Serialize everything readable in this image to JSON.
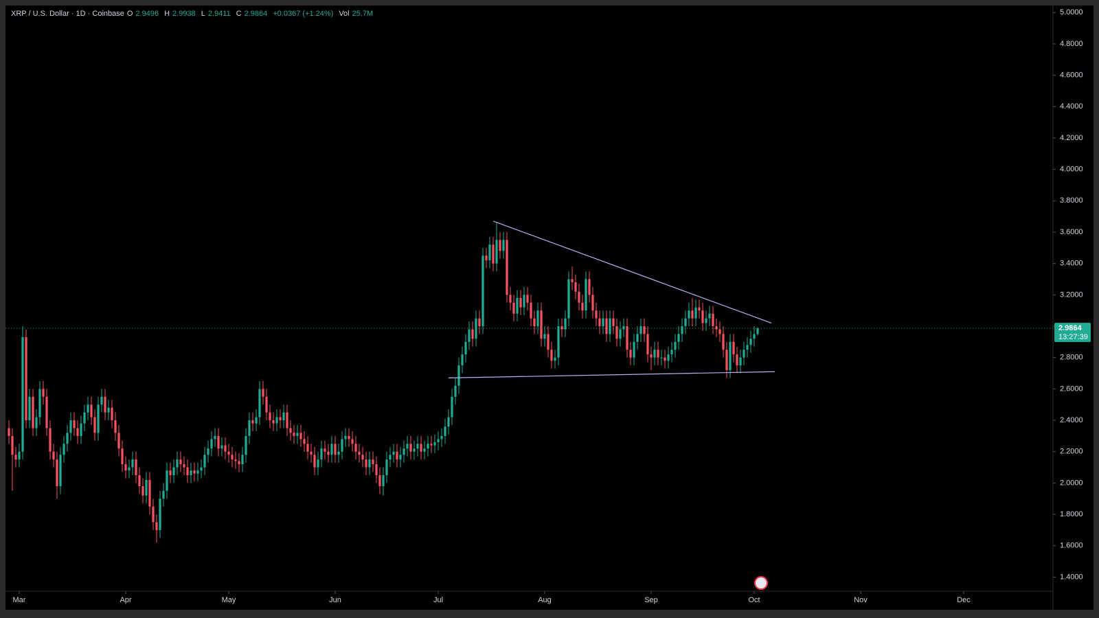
{
  "chart_data": {
    "type": "candlestick",
    "symbol": "XRP / U.S. Dollar · 1D · Coinbase",
    "ohlc_labels": [
      "O",
      "H",
      "L",
      "C"
    ],
    "change": "+0.0367 (+1.24%)",
    "volume_label": "Vol",
    "volume": "25.7M",
    "countdown": "13:27:39",
    "up_color": "#22ab94",
    "down_color": "#f7525f",
    "grid": false,
    "xlim": [
      56,
      361
    ],
    "xticks": [
      {
        "value": 60,
        "label": "Mar"
      },
      {
        "value": 91,
        "label": "Apr"
      },
      {
        "value": 121,
        "label": "May"
      },
      {
        "value": 152,
        "label": "Jun"
      },
      {
        "value": 182,
        "label": "Jul"
      },
      {
        "value": 213,
        "label": "Aug"
      },
      {
        "value": 244,
        "label": "Sep"
      },
      {
        "value": 274,
        "label": "Oct"
      },
      {
        "value": 305,
        "label": "Nov"
      },
      {
        "value": 335,
        "label": "Dec"
      }
    ],
    "ylim": [
      1.31,
      5.045
    ],
    "yticks": [
      {
        "value": 1.4,
        "label": "1.4000"
      },
      {
        "value": 1.6,
        "label": "1.6000"
      },
      {
        "value": 1.8,
        "label": "1.8000"
      },
      {
        "value": 2.0,
        "label": "2.0000"
      },
      {
        "value": 2.2,
        "label": "2.2000"
      },
      {
        "value": 2.4,
        "label": "2.4000"
      },
      {
        "value": 2.6,
        "label": "2.6000"
      },
      {
        "value": 2.8,
        "label": "2.8000"
      },
      {
        "value": 3.0,
        "label": "3.0000"
      },
      {
        "value": 3.2,
        "label": "3.2000"
      },
      {
        "value": 3.4,
        "label": "3.4000"
      },
      {
        "value": 3.6,
        "label": "3.6000"
      },
      {
        "value": 3.8,
        "label": "3.8000"
      },
      {
        "value": 4.0,
        "label": "4.0000"
      },
      {
        "value": 4.2,
        "label": "4.2000"
      },
      {
        "value": 4.4,
        "label": "4.4000"
      },
      {
        "value": 4.6,
        "label": "4.6000"
      },
      {
        "value": 4.8,
        "label": "4.8000"
      },
      {
        "value": 5.0,
        "label": "5.0000"
      }
    ],
    "trendlines": [
      {
        "color": "#b2b5f0",
        "x": [
          198,
          279
        ],
        "y": [
          3.67,
          3.02
        ]
      },
      {
        "color": "#b2b5f0",
        "x": [
          185,
          280
        ],
        "y": [
          2.67,
          2.71
        ]
      }
    ],
    "x": [
      57,
      58,
      59,
      60,
      61,
      62,
      63,
      64,
      65,
      66,
      67,
      68,
      69,
      70,
      71,
      72,
      73,
      74,
      75,
      76,
      77,
      78,
      79,
      80,
      81,
      82,
      83,
      84,
      85,
      86,
      87,
      88,
      89,
      90,
      91,
      92,
      93,
      94,
      95,
      96,
      97,
      98,
      99,
      100,
      101,
      102,
      103,
      104,
      105,
      106,
      107,
      108,
      109,
      110,
      111,
      112,
      113,
      114,
      115,
      116,
      117,
      118,
      119,
      120,
      121,
      122,
      123,
      124,
      125,
      126,
      127,
      128,
      129,
      130,
      131,
      132,
      133,
      134,
      135,
      136,
      137,
      138,
      139,
      140,
      141,
      142,
      143,
      144,
      145,
      146,
      147,
      148,
      149,
      150,
      151,
      152,
      153,
      154,
      155,
      156,
      157,
      158,
      159,
      160,
      161,
      162,
      163,
      164,
      165,
      166,
      167,
      168,
      169,
      170,
      171,
      172,
      173,
      174,
      175,
      176,
      177,
      178,
      179,
      180,
      181,
      182,
      183,
      184,
      185,
      186,
      187,
      188,
      189,
      190,
      191,
      192,
      193,
      194,
      195,
      196,
      197,
      198,
      199,
      200,
      201,
      202,
      203,
      204,
      205,
      206,
      207,
      208,
      209,
      210,
      211,
      212,
      213,
      214,
      215,
      216,
      217,
      218,
      219,
      220,
      221,
      222,
      223,
      224,
      225,
      226,
      227,
      228,
      229,
      230,
      231,
      232,
      233,
      234,
      235,
      236,
      237,
      238,
      239,
      240,
      241,
      242,
      243,
      244,
      245,
      246,
      247,
      248,
      249,
      250,
      251,
      252,
      253,
      254,
      255,
      256,
      257,
      258,
      259,
      260,
      261,
      262,
      263,
      264,
      265,
      266,
      267,
      268,
      269,
      270,
      271,
      272,
      273,
      274,
      275
    ],
    "open": [
      2.35,
      2.3,
      2.18,
      2.15,
      2.2,
      2.93,
      2.4,
      2.55,
      2.35,
      2.42,
      2.6,
      2.55,
      2.35,
      2.2,
      2.15,
      1.98,
      2.18,
      2.25,
      2.32,
      2.4,
      2.35,
      2.3,
      2.38,
      2.45,
      2.5,
      2.42,
      2.32,
      2.5,
      2.55,
      2.45,
      2.48,
      2.4,
      2.32,
      2.22,
      2.12,
      2.08,
      2.1,
      2.15,
      2.05,
      1.98,
      1.92,
      2.02,
      1.85,
      1.75,
      1.7,
      1.9,
      1.95,
      2.08,
      2.05,
      2.1,
      2.15,
      2.12,
      2.1,
      2.05,
      2.08,
      2.06,
      2.08,
      2.1,
      2.18,
      2.22,
      2.28,
      2.3,
      2.22,
      2.24,
      2.2,
      2.18,
      2.15,
      2.14,
      2.12,
      2.18,
      2.3,
      2.4,
      2.38,
      2.42,
      2.6,
      2.55,
      2.45,
      2.4,
      2.38,
      2.42,
      2.4,
      2.45,
      2.35,
      2.32,
      2.3,
      2.32,
      2.28,
      2.25,
      2.2,
      2.18,
      2.1,
      2.15,
      2.22,
      2.2,
      2.18,
      2.25,
      2.18,
      2.2,
      2.28,
      2.3,
      2.28,
      2.25,
      2.2,
      2.18,
      2.15,
      2.1,
      2.15,
      2.12,
      2.05,
      1.98,
      2.05,
      2.15,
      2.18,
      2.2,
      2.15,
      2.18,
      2.22,
      2.25,
      2.2,
      2.22,
      2.25,
      2.2,
      2.22,
      2.25,
      2.24,
      2.26,
      2.28,
      2.3,
      2.36,
      2.42,
      2.55,
      2.62,
      2.75,
      2.82,
      2.9,
      2.98,
      2.92,
      3.05,
      3.0,
      3.45,
      3.42,
      3.52,
      3.4,
      3.55,
      3.48,
      3.55,
      3.2,
      3.15,
      3.08,
      3.18,
      3.12,
      3.2,
      3.15,
      3.05,
      3.0,
      3.1,
      2.92,
      2.95,
      2.85,
      2.78,
      2.8,
      3.0,
      2.98,
      3.05,
      3.3,
      3.28,
      3.22,
      3.15,
      3.1,
      3.3,
      3.2,
      3.1,
      3.05,
      3.0,
      3.05,
      2.95,
      3.05,
      3.0,
      2.92,
      2.98,
      3.0,
      2.85,
      2.8,
      2.9,
      2.95,
      3.0,
      2.95,
      2.82,
      2.8,
      2.85,
      2.8,
      2.8,
      2.78,
      2.82,
      2.85,
      2.9,
      2.95,
      3.0,
      3.05,
      3.1,
      3.05,
      3.12,
      3.1,
      3.02,
      3.05,
      3.08,
      3.0,
      2.98,
      2.95,
      2.85,
      2.72,
      2.9,
      2.82,
      2.75,
      2.8,
      2.85,
      2.88,
      2.92,
      2.9496
    ],
    "high": [
      2.4,
      2.35,
      2.23,
      2.25,
      3.0,
      2.98,
      2.6,
      2.6,
      2.47,
      2.65,
      2.65,
      2.6,
      2.4,
      2.25,
      2.2,
      2.23,
      2.3,
      2.37,
      2.45,
      2.45,
      2.4,
      2.43,
      2.5,
      2.55,
      2.55,
      2.47,
      2.55,
      2.6,
      2.6,
      2.53,
      2.53,
      2.45,
      2.37,
      2.27,
      2.17,
      2.15,
      2.2,
      2.2,
      2.1,
      2.03,
      2.07,
      2.07,
      1.9,
      1.8,
      1.95,
      2.0,
      2.13,
      2.13,
      2.15,
      2.2,
      2.2,
      2.17,
      2.15,
      2.13,
      2.13,
      2.13,
      2.15,
      2.23,
      2.27,
      2.33,
      2.35,
      2.35,
      2.29,
      2.29,
      2.25,
      2.23,
      2.2,
      2.19,
      2.23,
      2.35,
      2.45,
      2.45,
      2.47,
      2.65,
      2.65,
      2.6,
      2.5,
      2.45,
      2.47,
      2.47,
      2.5,
      2.5,
      2.4,
      2.37,
      2.37,
      2.37,
      2.33,
      2.3,
      2.25,
      2.23,
      2.2,
      2.27,
      2.27,
      2.25,
      2.3,
      2.3,
      2.25,
      2.33,
      2.35,
      2.35,
      2.33,
      2.3,
      2.25,
      2.23,
      2.2,
      2.2,
      2.2,
      2.17,
      2.1,
      2.1,
      2.2,
      2.23,
      2.25,
      2.25,
      2.23,
      2.27,
      2.3,
      2.3,
      2.27,
      2.3,
      2.3,
      2.27,
      2.3,
      2.3,
      2.31,
      2.33,
      2.35,
      2.41,
      2.47,
      2.6,
      2.67,
      2.8,
      2.87,
      2.95,
      3.03,
      3.03,
      3.1,
      3.1,
      3.5,
      3.5,
      3.57,
      3.57,
      3.66,
      3.6,
      3.6,
      3.6,
      3.25,
      3.2,
      3.23,
      3.23,
      3.25,
      3.25,
      3.2,
      3.1,
      3.15,
      3.15,
      3.0,
      3.0,
      2.9,
      2.85,
      3.05,
      3.05,
      3.1,
      3.35,
      3.38,
      3.33,
      3.27,
      3.2,
      3.35,
      3.35,
      3.25,
      3.15,
      3.1,
      3.1,
      3.1,
      3.1,
      3.1,
      3.05,
      3.03,
      3.05,
      3.05,
      2.9,
      2.95,
      3.0,
      3.05,
      3.05,
      3.0,
      2.87,
      2.9,
      2.9,
      2.85,
      2.85,
      2.87,
      2.9,
      2.95,
      3.0,
      3.05,
      3.1,
      3.15,
      3.18,
      3.17,
      3.17,
      3.15,
      3.1,
      3.13,
      3.13,
      3.05,
      3.03,
      3.0,
      2.9,
      2.95,
      2.95,
      2.87,
      2.85,
      2.9,
      2.93,
      2.97,
      3.0,
      2.9938
    ],
    "low": [
      2.25,
      1.95,
      2.1,
      2.1,
      2.15,
      2.35,
      2.35,
      2.3,
      2.3,
      2.37,
      2.5,
      2.3,
      2.15,
      2.1,
      1.9,
      1.93,
      2.13,
      2.2,
      2.27,
      2.3,
      2.25,
      2.25,
      2.33,
      2.4,
      2.37,
      2.27,
      2.27,
      2.45,
      2.4,
      2.4,
      2.35,
      2.27,
      2.17,
      2.07,
      2.03,
      2.03,
      2.05,
      2.0,
      1.93,
      1.87,
      1.87,
      1.8,
      1.7,
      1.62,
      1.65,
      1.85,
      1.9,
      2.0,
      2.0,
      2.05,
      2.07,
      2.05,
      2.0,
      2.0,
      2.01,
      2.01,
      2.03,
      2.05,
      2.13,
      2.17,
      2.23,
      2.17,
      2.17,
      2.15,
      2.13,
      2.1,
      2.09,
      2.07,
      2.07,
      2.13,
      2.25,
      2.33,
      2.33,
      2.37,
      2.5,
      2.4,
      2.35,
      2.33,
      2.33,
      2.35,
      2.35,
      2.3,
      2.27,
      2.25,
      2.25,
      2.23,
      2.2,
      2.15,
      2.13,
      2.05,
      2.05,
      2.1,
      2.15,
      2.13,
      2.13,
      2.13,
      2.13,
      2.15,
      2.23,
      2.23,
      2.2,
      2.15,
      2.13,
      2.1,
      2.05,
      2.05,
      2.07,
      2.0,
      1.93,
      1.92,
      2.0,
      2.1,
      2.13,
      2.1,
      2.1,
      2.13,
      2.17,
      2.15,
      2.15,
      2.17,
      2.15,
      2.15,
      2.17,
      2.19,
      2.19,
      2.21,
      2.23,
      2.25,
      2.31,
      2.37,
      2.5,
      2.57,
      2.7,
      2.77,
      2.85,
      2.87,
      2.87,
      2.95,
      2.95,
      3.37,
      3.37,
      3.35,
      3.35,
      3.43,
      3.43,
      3.15,
      3.1,
      3.03,
      3.03,
      3.07,
      3.07,
      3.1,
      3.0,
      2.95,
      2.95,
      2.87,
      2.87,
      2.8,
      2.73,
      2.73,
      2.75,
      2.93,
      2.93,
      3.0,
      3.23,
      3.17,
      3.1,
      3.05,
      3.05,
      3.15,
      3.05,
      3.0,
      2.95,
      2.95,
      2.9,
      2.9,
      2.95,
      2.87,
      2.87,
      2.93,
      2.8,
      2.75,
      2.75,
      2.85,
      2.9,
      2.9,
      2.77,
      2.72,
      2.75,
      2.75,
      2.75,
      2.73,
      2.73,
      2.77,
      2.8,
      2.85,
      2.9,
      2.95,
      3.0,
      3.0,
      3.0,
      3.05,
      2.97,
      2.97,
      3.0,
      2.95,
      2.93,
      2.9,
      2.8,
      2.67,
      2.67,
      2.77,
      2.7,
      2.7,
      2.75,
      2.8,
      2.83,
      2.87,
      2.9411
    ],
    "close": [
      2.3,
      2.18,
      2.15,
      2.2,
      2.93,
      2.4,
      2.55,
      2.35,
      2.42,
      2.6,
      2.55,
      2.35,
      2.2,
      2.15,
      1.98,
      2.18,
      2.25,
      2.32,
      2.4,
      2.35,
      2.3,
      2.38,
      2.45,
      2.5,
      2.42,
      2.32,
      2.5,
      2.55,
      2.45,
      2.48,
      2.4,
      2.32,
      2.22,
      2.12,
      2.08,
      2.1,
      2.15,
      2.05,
      1.98,
      1.92,
      2.02,
      1.85,
      1.75,
      1.7,
      1.9,
      1.95,
      2.08,
      2.05,
      2.1,
      2.15,
      2.12,
      2.1,
      2.05,
      2.08,
      2.06,
      2.08,
      2.1,
      2.18,
      2.22,
      2.28,
      2.3,
      2.22,
      2.24,
      2.2,
      2.18,
      2.15,
      2.14,
      2.12,
      2.18,
      2.3,
      2.4,
      2.38,
      2.42,
      2.6,
      2.55,
      2.45,
      2.4,
      2.38,
      2.42,
      2.4,
      2.45,
      2.35,
      2.32,
      2.3,
      2.32,
      2.28,
      2.25,
      2.2,
      2.18,
      2.1,
      2.15,
      2.22,
      2.2,
      2.18,
      2.25,
      2.18,
      2.2,
      2.28,
      2.3,
      2.28,
      2.25,
      2.2,
      2.18,
      2.15,
      2.1,
      2.15,
      2.12,
      2.05,
      1.98,
      2.05,
      2.15,
      2.18,
      2.2,
      2.15,
      2.18,
      2.22,
      2.25,
      2.2,
      2.22,
      2.25,
      2.2,
      2.22,
      2.25,
      2.24,
      2.26,
      2.28,
      2.3,
      2.36,
      2.42,
      2.55,
      2.62,
      2.75,
      2.82,
      2.9,
      2.98,
      2.92,
      3.05,
      3.0,
      3.45,
      3.42,
      3.52,
      3.4,
      3.55,
      3.48,
      3.55,
      3.2,
      3.15,
      3.08,
      3.18,
      3.12,
      3.2,
      3.15,
      3.05,
      3.0,
      3.1,
      2.92,
      2.95,
      2.85,
      2.78,
      2.8,
      3.0,
      2.98,
      3.05,
      3.3,
      3.28,
      3.22,
      3.15,
      3.1,
      3.3,
      3.2,
      3.1,
      3.05,
      3.0,
      3.05,
      2.95,
      3.05,
      3.0,
      2.92,
      2.98,
      3.0,
      2.85,
      2.8,
      2.9,
      2.95,
      3.0,
      2.95,
      2.82,
      2.8,
      2.85,
      2.8,
      2.8,
      2.78,
      2.82,
      2.85,
      2.9,
      2.95,
      3.0,
      3.05,
      3.1,
      3.05,
      3.12,
      3.1,
      3.02,
      3.05,
      3.08,
      3.0,
      2.98,
      2.95,
      2.85,
      2.72,
      2.9,
      2.82,
      2.75,
      2.8,
      2.85,
      2.88,
      2.92,
      2.9496,
      2.9864
    ]
  }
}
